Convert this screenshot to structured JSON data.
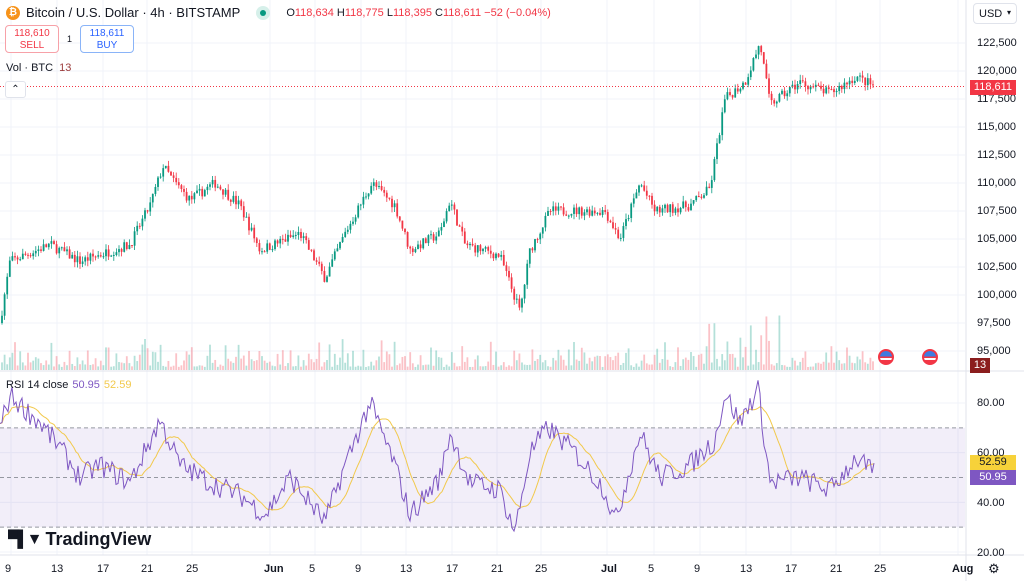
{
  "header": {
    "symbol": "Bitcoin / U.S. Dollar · 4h · BITSTAMP",
    "open_label": "O",
    "open": "118,634",
    "high_label": "H",
    "high": "118,775",
    "low_label": "L",
    "low": "118,395",
    "close_label": "C",
    "close": "118,611",
    "change": "−52 (−0.04%)"
  },
  "trade": {
    "sell_price": "118,610",
    "sell_label": "SELL",
    "quantity": "1",
    "buy_price": "118,611",
    "buy_label": "BUY"
  },
  "volume": {
    "label": "Vol · BTC",
    "value": "13"
  },
  "currency": "USD",
  "price_axis": [
    "122,500",
    "120,000",
    "117,500",
    "115,000",
    "112,500",
    "110,000",
    "107,500",
    "105,000",
    "102,500",
    "100,000",
    "97,500",
    "95,000"
  ],
  "last_price_tag": "118,611",
  "volume_tag": "13",
  "rsi": {
    "label": "RSI 14 close",
    "value": "50.95",
    "ma": "52.59",
    "axis": [
      "80.00",
      "60.00",
      "40.00",
      "20.00"
    ]
  },
  "time_axis": [
    "9",
    "13",
    "17",
    "21",
    "25",
    "Jun",
    "5",
    "9",
    "13",
    "17",
    "21",
    "25",
    "Jul",
    "5",
    "9",
    "13",
    "17",
    "21",
    "25",
    "Aug"
  ],
  "logo": "TradingView",
  "colors": {
    "up": "#089981",
    "down": "#f23645",
    "rsi": "#7e57c2",
    "rsi_ma": "#f2c94c"
  },
  "chart_data": {
    "type": "candlestick",
    "price_range": [
      95000,
      123500
    ],
    "rsi_range": [
      20,
      85
    ],
    "price_path": [
      [
        0,
        97500
      ],
      [
        10,
        103000
      ],
      [
        50,
        104500
      ],
      [
        80,
        103000
      ],
      [
        130,
        104500
      ],
      [
        150,
        108000
      ],
      [
        163,
        111500
      ],
      [
        175,
        110000
      ],
      [
        190,
        108500
      ],
      [
        215,
        110000
      ],
      [
        240,
        108000
      ],
      [
        260,
        104000
      ],
      [
        300,
        105500
      ],
      [
        325,
        101500
      ],
      [
        345,
        105500
      ],
      [
        372,
        110000
      ],
      [
        395,
        108000
      ],
      [
        410,
        104000
      ],
      [
        440,
        105500
      ],
      [
        450,
        108500
      ],
      [
        465,
        104500
      ],
      [
        500,
        103500
      ],
      [
        520,
        98500
      ],
      [
        530,
        104000
      ],
      [
        550,
        107500
      ],
      [
        580,
        107500
      ],
      [
        605,
        107500
      ],
      [
        620,
        105000
      ],
      [
        640,
        110000
      ],
      [
        655,
        107500
      ],
      [
        690,
        108000
      ],
      [
        710,
        109500
      ],
      [
        725,
        117500
      ],
      [
        745,
        119000
      ],
      [
        760,
        122500
      ],
      [
        770,
        117000
      ],
      [
        800,
        119000
      ],
      [
        830,
        118000
      ],
      [
        856,
        119500
      ],
      [
        875,
        118611
      ]
    ],
    "rsi_path": [
      [
        0,
        70
      ],
      [
        10,
        83
      ],
      [
        40,
        72
      ],
      [
        60,
        62
      ],
      [
        80,
        50
      ],
      [
        100,
        55
      ],
      [
        130,
        48
      ],
      [
        160,
        73
      ],
      [
        180,
        55
      ],
      [
        210,
        48
      ],
      [
        240,
        43
      ],
      [
        265,
        35
      ],
      [
        290,
        50
      ],
      [
        325,
        32
      ],
      [
        345,
        55
      ],
      [
        370,
        80
      ],
      [
        395,
        55
      ],
      [
        410,
        35
      ],
      [
        440,
        50
      ],
      [
        450,
        68
      ],
      [
        470,
        48
      ],
      [
        500,
        45
      ],
      [
        515,
        28
      ],
      [
        530,
        60
      ],
      [
        548,
        70
      ],
      [
        575,
        60
      ],
      [
        605,
        45
      ],
      [
        615,
        32
      ],
      [
        640,
        68
      ],
      [
        660,
        50
      ],
      [
        690,
        55
      ],
      [
        715,
        65
      ],
      [
        725,
        84
      ],
      [
        740,
        72
      ],
      [
        758,
        86
      ],
      [
        770,
        48
      ],
      [
        800,
        50
      ],
      [
        830,
        45
      ],
      [
        856,
        58
      ],
      [
        875,
        51
      ]
    ]
  }
}
